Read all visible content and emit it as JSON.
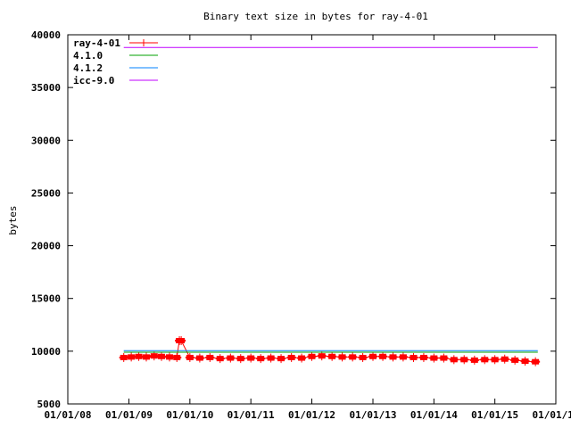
{
  "chart_data": {
    "type": "line",
    "title": "Binary text size in bytes for ray-4-01",
    "ylabel": "bytes",
    "xlabel": "",
    "ylim": [
      5000,
      40000
    ],
    "xlim": [
      "2008-01-01",
      "2016-01-01"
    ],
    "y_ticks": [
      5000,
      10000,
      15000,
      20000,
      25000,
      30000,
      35000,
      40000
    ],
    "x_ticks": [
      "2008-01-01",
      "2009-01-01",
      "2010-01-01",
      "2011-01-01",
      "2012-01-01",
      "2013-01-01",
      "2014-01-01",
      "2015-01-01",
      "2016-01-01"
    ],
    "x_tick_labels": [
      "01/01/08",
      "01/01/09",
      "01/01/10",
      "01/01/11",
      "01/01/12",
      "01/01/13",
      "01/01/14",
      "01/01/15",
      "01/01/16"
    ],
    "grid": false,
    "legend_position": "top-left",
    "series": [
      {
        "name": "ray-4-01",
        "color": "#ff0000",
        "marker": "plus",
        "x": [
          "2008-12-01",
          "2009-01-15",
          "2009-03-01",
          "2009-04-15",
          "2009-06-01",
          "2009-07-15",
          "2009-09-01",
          "2009-10-15",
          "2009-10-30",
          "2009-11-10",
          "2010-01-01",
          "2010-03-01",
          "2010-05-01",
          "2010-07-01",
          "2010-09-01",
          "2010-11-01",
          "2011-01-01",
          "2011-03-01",
          "2011-05-01",
          "2011-07-01",
          "2011-09-01",
          "2011-11-01",
          "2012-01-01",
          "2012-03-01",
          "2012-05-01",
          "2012-07-01",
          "2012-09-01",
          "2012-11-01",
          "2013-01-01",
          "2013-03-01",
          "2013-05-01",
          "2013-07-01",
          "2013-09-01",
          "2013-11-01",
          "2014-01-01",
          "2014-03-01",
          "2014-05-01",
          "2014-07-01",
          "2014-09-01",
          "2014-11-01",
          "2015-01-01",
          "2015-03-01",
          "2015-05-01",
          "2015-07-01",
          "2015-09-01"
        ],
        "y": [
          9400,
          9450,
          9500,
          9450,
          9550,
          9500,
          9450,
          9400,
          11000,
          11000,
          9400,
          9350,
          9400,
          9300,
          9350,
          9300,
          9350,
          9300,
          9350,
          9300,
          9400,
          9350,
          9500,
          9550,
          9500,
          9450,
          9450,
          9400,
          9500,
          9500,
          9450,
          9450,
          9400,
          9400,
          9350,
          9350,
          9200,
          9200,
          9150,
          9200,
          9200,
          9250,
          9150,
          9050,
          9000
        ]
      },
      {
        "name": "4.1.0",
        "color": "#00a000",
        "x": [
          "2008-12-01",
          "2015-09-15"
        ],
        "y": [
          9900,
          9900
        ]
      },
      {
        "name": "4.1.2",
        "color": "#0080ff",
        "x": [
          "2008-12-01",
          "2015-09-15"
        ],
        "y": [
          10050,
          10050
        ]
      },
      {
        "name": "icc-9.0",
        "color": "#c000ff",
        "x": [
          "2008-12-01",
          "2015-09-15"
        ],
        "y": [
          38800,
          38800
        ]
      }
    ]
  }
}
